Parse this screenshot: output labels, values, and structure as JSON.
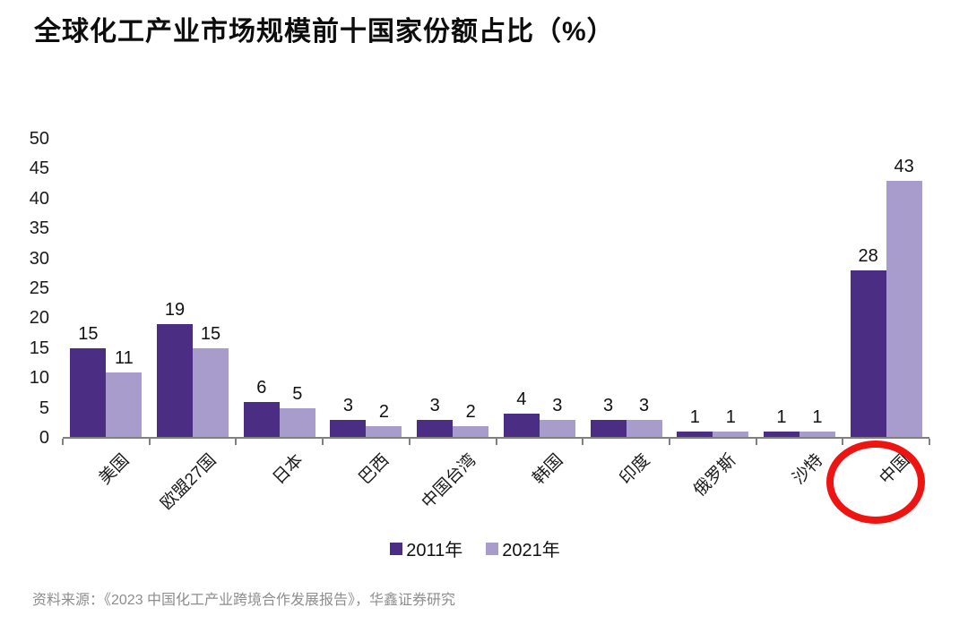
{
  "chart_data": {
    "type": "bar",
    "title": "全球化工产业市场规模前十国家份额占比（%）",
    "categories": [
      "美国",
      "欧盟27国",
      "日本",
      "巴西",
      "中国台湾",
      "韩国",
      "印度",
      "俄罗斯",
      "沙特",
      "中国"
    ],
    "series": [
      {
        "name": "2011年",
        "color": "#4b2e83",
        "values": [
          15,
          19,
          6,
          3,
          3,
          4,
          3,
          1,
          1,
          28
        ]
      },
      {
        "name": "2021年",
        "color": "#a89ccd",
        "values": [
          11,
          15,
          5,
          2,
          2,
          3,
          3,
          1,
          1,
          43
        ]
      }
    ],
    "ylabel": "",
    "xlabel": "",
    "ylim": [
      0,
      50
    ],
    "ytick_step": 5,
    "grid": false,
    "legend_position": "bottom",
    "axis_color": "#808080",
    "annotation": {
      "shape": "ellipse",
      "target_category": "中国",
      "color": "#ee1411",
      "meaning": "highlight of China x-axis label"
    }
  },
  "source": "资料来源：《2023 中国化工产业跨境合作发展报告》，华鑫证券研究"
}
